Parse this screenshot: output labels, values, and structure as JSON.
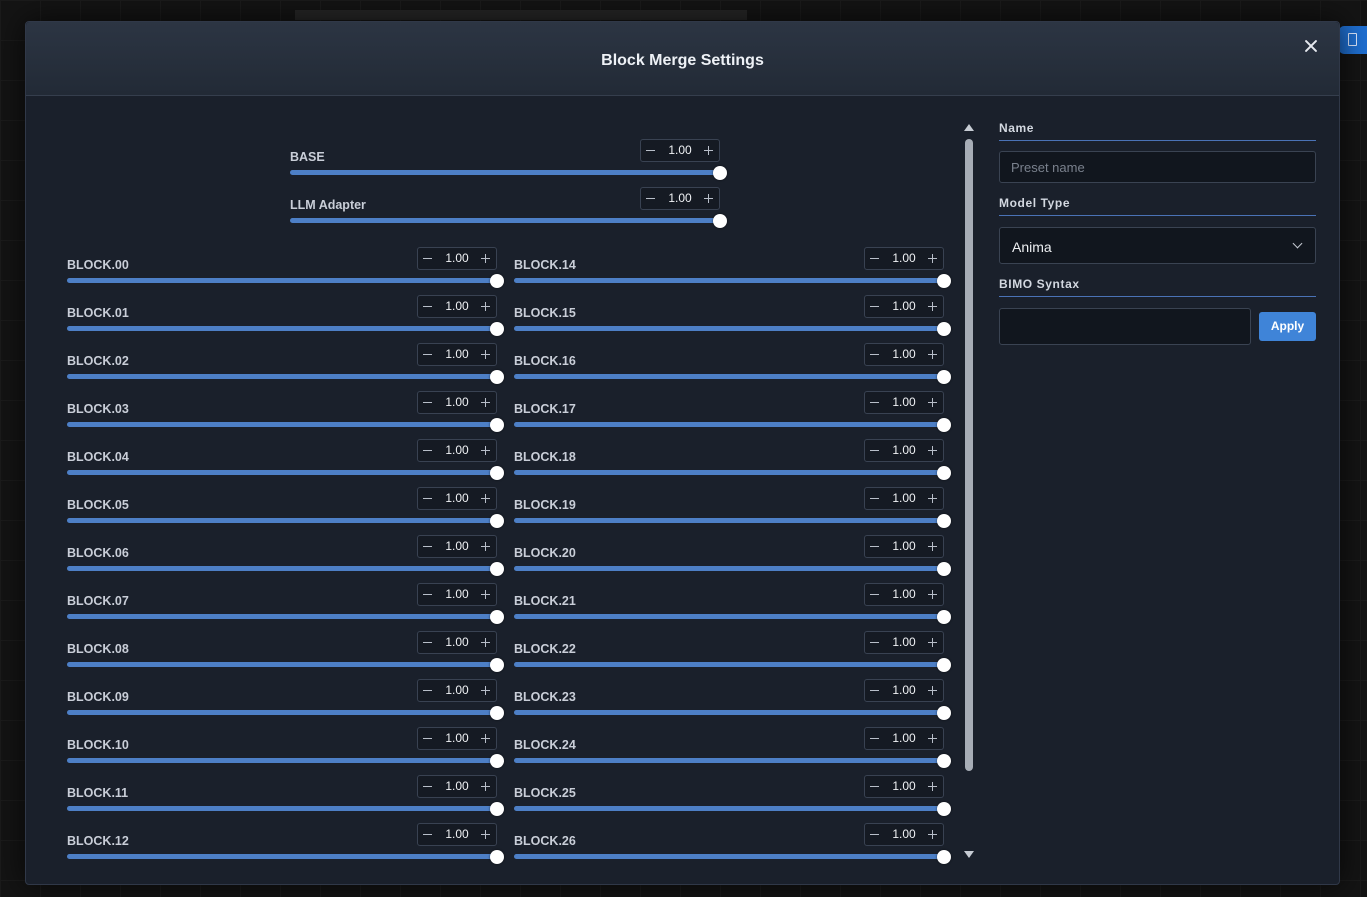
{
  "dialog": {
    "title": "Block Merge Settings",
    "close_icon": "close-icon"
  },
  "sliders": {
    "top": [
      {
        "label": "BASE",
        "value": "1.00",
        "level": 1.0
      },
      {
        "label": "LLM Adapter",
        "value": "1.00",
        "level": 1.0
      }
    ],
    "left": [
      {
        "label": "BLOCK.00",
        "value": "1.00",
        "level": 1.0
      },
      {
        "label": "BLOCK.01",
        "value": "1.00",
        "level": 1.0
      },
      {
        "label": "BLOCK.02",
        "value": "1.00",
        "level": 1.0
      },
      {
        "label": "BLOCK.03",
        "value": "1.00",
        "level": 1.0
      },
      {
        "label": "BLOCK.04",
        "value": "1.00",
        "level": 1.0
      },
      {
        "label": "BLOCK.05",
        "value": "1.00",
        "level": 1.0
      },
      {
        "label": "BLOCK.06",
        "value": "1.00",
        "level": 1.0
      },
      {
        "label": "BLOCK.07",
        "value": "1.00",
        "level": 1.0
      },
      {
        "label": "BLOCK.08",
        "value": "1.00",
        "level": 1.0
      },
      {
        "label": "BLOCK.09",
        "value": "1.00",
        "level": 1.0
      },
      {
        "label": "BLOCK.10",
        "value": "1.00",
        "level": 1.0
      },
      {
        "label": "BLOCK.11",
        "value": "1.00",
        "level": 1.0
      },
      {
        "label": "BLOCK.12",
        "value": "1.00",
        "level": 1.0
      }
    ],
    "right": [
      {
        "label": "BLOCK.14",
        "value": "1.00",
        "level": 1.0
      },
      {
        "label": "BLOCK.15",
        "value": "1.00",
        "level": 1.0
      },
      {
        "label": "BLOCK.16",
        "value": "1.00",
        "level": 1.0
      },
      {
        "label": "BLOCK.17",
        "value": "1.00",
        "level": 1.0
      },
      {
        "label": "BLOCK.18",
        "value": "1.00",
        "level": 1.0
      },
      {
        "label": "BLOCK.19",
        "value": "1.00",
        "level": 1.0
      },
      {
        "label": "BLOCK.20",
        "value": "1.00",
        "level": 1.0
      },
      {
        "label": "BLOCK.21",
        "value": "1.00",
        "level": 1.0
      },
      {
        "label": "BLOCK.22",
        "value": "1.00",
        "level": 1.0
      },
      {
        "label": "BLOCK.23",
        "value": "1.00",
        "level": 1.0
      },
      {
        "label": "BLOCK.24",
        "value": "1.00",
        "level": 1.0
      },
      {
        "label": "BLOCK.25",
        "value": "1.00",
        "level": 1.0
      },
      {
        "label": "BLOCK.26",
        "value": "1.00",
        "level": 1.0
      }
    ]
  },
  "side_panel": {
    "name_label": "Name",
    "name_placeholder": "Preset name",
    "name_value": "",
    "model_type_label": "Model Type",
    "model_type_value": "Anima",
    "bimo_label": "BIMO Syntax",
    "bimo_value": "",
    "apply_label": "Apply"
  },
  "colors": {
    "accent": "#4d7fc6",
    "button": "#3f84d8",
    "panel": "#1a202b"
  }
}
